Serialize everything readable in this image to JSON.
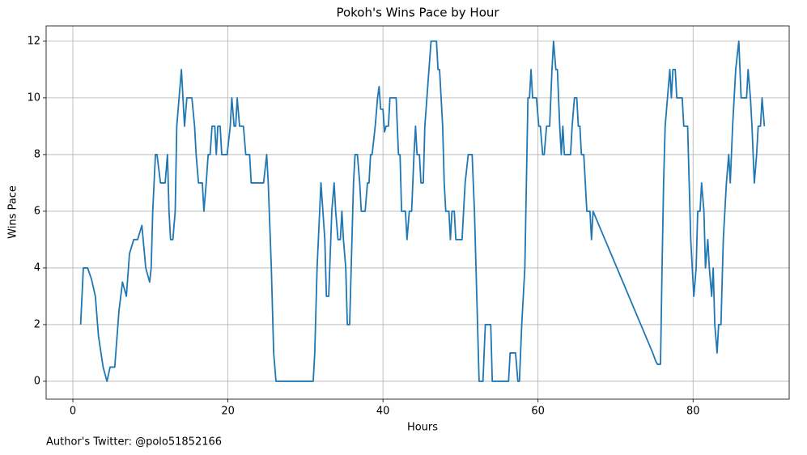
{
  "chart_data": {
    "type": "line",
    "title": "Pokoh's Wins Pace by Hour",
    "xlabel": "Hours",
    "ylabel": "Wins Pace",
    "footnote": "Author's Twitter: @polo51852166",
    "color": "#1f77b4",
    "grid": true,
    "xlim": [
      -3.45,
      92.4
    ],
    "ylim": [
      -0.63,
      12.54
    ],
    "xticks": [
      0,
      20,
      40,
      60,
      80
    ],
    "yticks": [
      0,
      2,
      4,
      6,
      8,
      10,
      12
    ],
    "x": [
      1.0,
      1.35,
      1.9,
      2.4,
      2.9,
      3.3,
      3.9,
      4.4,
      4.8,
      5.4,
      5.95,
      6.4,
      6.9,
      7.3,
      7.85,
      8.35,
      8.9,
      9.4,
      9.9,
      10.1,
      10.3,
      10.65,
      10.85,
      11.3,
      11.9,
      12.2,
      12.4,
      12.6,
      12.9,
      13.2,
      13.4,
      13.7,
      14.0,
      14.2,
      14.4,
      14.7,
      15.35,
      15.7,
      15.9,
      16.2,
      16.7,
      16.9,
      17.2,
      17.45,
      17.7,
      17.95,
      18.3,
      18.5,
      18.7,
      19.0,
      19.2,
      19.9,
      20.3,
      20.5,
      20.8,
      21.0,
      21.2,
      21.5,
      22.0,
      22.3,
      22.8,
      23.0,
      24.6,
      25.0,
      25.2,
      25.6,
      25.9,
      26.2,
      31.0,
      31.2,
      31.5,
      32.0,
      32.5,
      32.7,
      33.0,
      33.4,
      33.7,
      33.9,
      34.2,
      34.5,
      34.7,
      34.9,
      35.2,
      35.4,
      35.7,
      36.0,
      36.2,
      36.4,
      36.7,
      37.0,
      37.2,
      37.7,
      38.0,
      38.2,
      38.4,
      38.6,
      39.0,
      39.3,
      39.5,
      39.7,
      40.0,
      40.2,
      40.4,
      40.7,
      40.9,
      41.7,
      42.0,
      42.2,
      42.4,
      42.9,
      43.1,
      43.4,
      43.7,
      44.0,
      44.2,
      44.4,
      44.7,
      44.9,
      45.2,
      45.4,
      46.2,
      46.9,
      47.1,
      47.3,
      47.5,
      47.7,
      47.9,
      48.1,
      48.5,
      48.7,
      48.9,
      49.2,
      49.4,
      50.2,
      50.4,
      50.6,
      51.0,
      51.5,
      51.8,
      52.0,
      52.2,
      52.4,
      52.9,
      53.2,
      53.9,
      54.1,
      56.2,
      56.4,
      57.1,
      57.4,
      57.6,
      57.9,
      58.3,
      58.5,
      58.7,
      58.9,
      59.1,
      59.3,
      59.8,
      60.1,
      60.3,
      60.6,
      60.8,
      61.1,
      61.5,
      61.8,
      62.0,
      62.3,
      62.5,
      62.8,
      63.0,
      63.2,
      63.4,
      64.2,
      64.4,
      64.7,
      65.0,
      65.2,
      65.4,
      65.6,
      65.9,
      66.1,
      66.3,
      66.7,
      66.9,
      67.1,
      74.8,
      75.2,
      75.4,
      75.8,
      76.0,
      76.2,
      76.4,
      76.7,
      77.0,
      77.2,
      77.4,
      77.7,
      77.9,
      78.6,
      78.8,
      79.3,
      79.5,
      79.7,
      79.9,
      80.1,
      80.4,
      80.6,
      80.9,
      81.1,
      81.4,
      81.6,
      81.9,
      82.1,
      82.4,
      82.6,
      82.8,
      83.1,
      83.3,
      83.6,
      83.9,
      84.1,
      84.3,
      84.6,
      84.8,
      85.1,
      85.3,
      85.5,
      85.9,
      86.2,
      86.9,
      87.1,
      87.4,
      87.6,
      87.9,
      88.2,
      88.4,
      88.7,
      88.9,
      89.2
    ],
    "values": [
      2,
      4,
      4,
      3.6,
      3,
      1.6,
      0.5,
      0,
      0.5,
      0.5,
      2.5,
      3.5,
      3,
      4.5,
      5,
      5,
      5.5,
      4,
      3.5,
      4,
      6,
      8,
      8,
      7,
      7,
      8,
      6,
      5,
      5,
      6,
      9,
      10,
      11,
      10,
      9,
      10,
      10,
      9,
      8,
      7,
      7,
      6,
      7,
      8,
      8,
      9,
      9,
      8,
      9,
      9,
      8,
      8,
      9,
      10,
      9,
      9,
      10,
      9,
      9,
      8,
      8,
      7,
      7,
      8,
      7,
      4,
      1,
      0,
      0,
      1,
      4,
      7,
      5,
      3,
      3,
      6,
      7,
      6,
      5,
      5,
      6,
      5,
      4,
      2,
      2,
      5,
      7,
      8,
      8,
      7,
      6,
      6,
      7,
      7,
      8,
      8,
      9,
      10,
      10.4,
      9.6,
      9.6,
      8.8,
      9,
      9,
      10,
      10,
      8,
      8,
      6,
      6,
      5,
      6,
      6,
      8,
      9,
      8,
      8,
      7,
      7,
      9,
      12,
      12,
      11,
      11,
      10,
      9,
      7,
      6,
      6,
      5,
      6,
      6,
      5,
      5,
      6,
      7,
      8,
      8,
      6,
      4,
      2,
      0,
      0,
      2,
      2,
      0,
      0,
      1,
      1,
      0,
      0,
      2,
      4,
      7,
      10,
      10,
      11,
      10,
      10,
      9,
      9,
      8,
      8,
      9,
      9,
      11,
      12,
      11,
      11,
      9,
      8,
      9,
      8,
      8,
      9,
      10,
      10,
      9,
      9,
      8,
      8,
      7,
      6,
      6,
      5,
      6,
      1,
      0.7,
      0.6,
      0.6,
      4,
      7,
      9,
      10,
      11,
      10,
      11,
      11,
      10,
      10,
      9,
      9,
      7,
      5,
      4,
      3,
      4,
      6,
      6,
      7,
      6,
      4,
      5,
      4,
      3,
      4,
      2,
      1,
      2,
      2,
      5,
      6,
      7,
      8,
      7,
      9,
      10,
      11,
      12,
      10,
      10,
      11,
      10,
      9,
      7,
      8,
      9,
      9,
      10,
      9
    ]
  }
}
